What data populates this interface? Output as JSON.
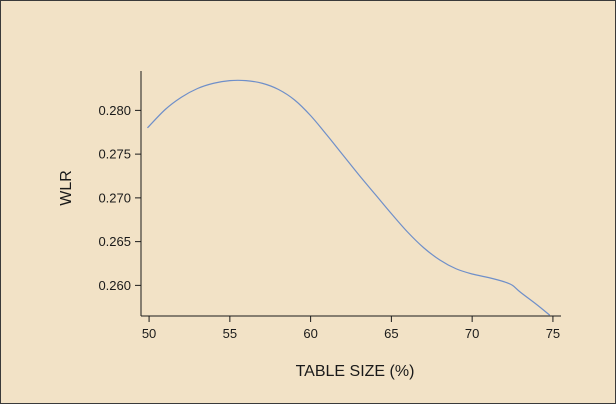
{
  "colors": {
    "background": "#f2e2c6",
    "line": "#6f8fc9",
    "axis": "#1a1a1a"
  },
  "chart_data": {
    "type": "line",
    "title": "",
    "xlabel": "TABLE SIZE (%)",
    "ylabel": "WLR",
    "xlim": [
      49.5,
      75.5
    ],
    "ylim": [
      0.2565,
      0.2845
    ],
    "x_ticks": [
      50,
      55,
      60,
      65,
      70,
      75
    ],
    "y_ticks": [
      0.26,
      0.265,
      0.27,
      0.275,
      0.28
    ],
    "x_tick_labels": [
      "50",
      "55",
      "60",
      "65",
      "70",
      "75"
    ],
    "y_tick_labels": [
      "0.260",
      "0.265",
      "0.270",
      "0.275",
      "0.280"
    ],
    "grid": false,
    "series": [
      {
        "x": [
          49.9,
          51,
          52,
          53,
          54,
          55,
          56,
          57,
          58,
          59,
          60,
          61,
          62,
          63,
          64,
          65,
          66,
          67,
          68,
          69,
          70,
          71,
          72,
          72.5,
          73,
          74,
          74.8
        ],
        "y": [
          0.278,
          0.2801,
          0.2815,
          0.2825,
          0.2831,
          0.2834,
          0.2834,
          0.2831,
          0.2824,
          0.2812,
          0.2794,
          0.2772,
          0.2749,
          0.2726,
          0.2704,
          0.2682,
          0.2661,
          0.2643,
          0.2629,
          0.2619,
          0.2613,
          0.2609,
          0.2604,
          0.26,
          0.2592,
          0.2578,
          0.2566
        ]
      }
    ]
  }
}
